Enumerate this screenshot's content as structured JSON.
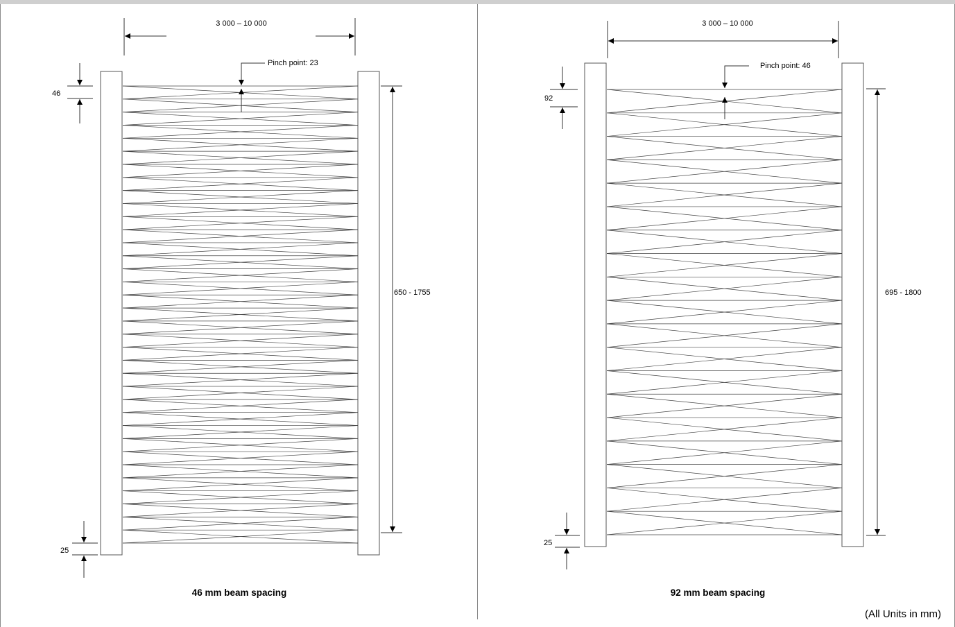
{
  "footer": {
    "units_note": "(All Units in mm)"
  },
  "panels": [
    {
      "id": "left",
      "caption": "46 mm beam spacing",
      "width_label": "3 000 – 10 000",
      "pinch_label": "Pinch point: 23",
      "spacing_label": "46",
      "bottom_label": "25",
      "height_label": "650 - 1755",
      "beam_count": 36
    },
    {
      "id": "right",
      "caption": "92 mm beam spacing",
      "width_label": "3 000 – 10 000",
      "pinch_label": "Pinch point: 46",
      "spacing_label": "92",
      "bottom_label": "25",
      "height_label": "695 - 1800",
      "beam_count": 20
    }
  ],
  "colors": {
    "line": "#333333",
    "beam": "#444444",
    "frame": "#8a8a8a"
  }
}
